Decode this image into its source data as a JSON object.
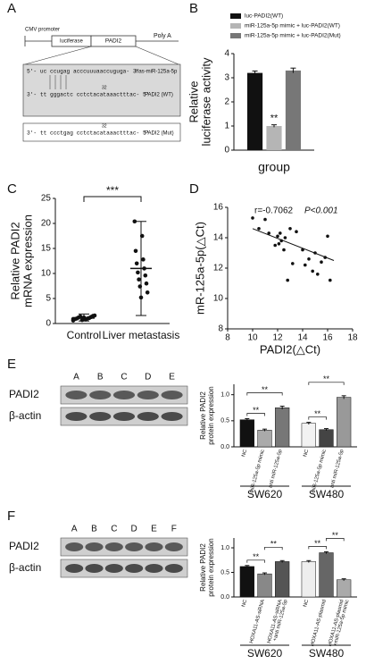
{
  "panel_labels": [
    "A",
    "B",
    "C",
    "D",
    "E",
    "F"
  ],
  "construct": {
    "promoter": "CMV promoter",
    "gene1": "luciferase",
    "gene2": "PADI2",
    "polya": "Poly A",
    "seq_mir": "5'- uc ccugag acccuuuaaccuguga- 3'",
    "mir_name": "has-miR-125a-5p",
    "seq_wt": "3'- tt gggactc cctctacataaactttac- 5'",
    "wt_name": "PADI2 (WT)",
    "seq_mut": "3'- tt ccctgag cctctacataaactttac- 5'",
    "mut_name": "PADI2 (Mut)",
    "position": "32"
  },
  "blots": [
    {
      "lanes": [
        "A",
        "B",
        "C",
        "D",
        "E"
      ],
      "rows": [
        "PADI2",
        "β-actin"
      ]
    },
    {
      "lanes": [
        "A",
        "B",
        "C",
        "D",
        "E",
        "F"
      ],
      "rows": [
        "PADI2",
        "β-actin"
      ]
    }
  ],
  "chart_data": [
    {
      "type": "bar",
      "ylabel": [
        "Relative",
        "luciferase activity"
      ],
      "categories": [
        "group"
      ],
      "series": [
        {
          "name": "luc-PADI2(WT)",
          "color": "#111111",
          "values": [
            3.2
          ],
          "errors": [
            0.08
          ]
        },
        {
          "name": "miR-125a-5p mimic + luc-PADI2(WT)",
          "color": "#b5b5b5",
          "values": [
            1.0
          ],
          "errors": [
            0.05
          ],
          "annotation": "**"
        },
        {
          "name": "miR-125a-5p mimic + luc-PADI2(Mut)",
          "color": "#777777",
          "values": [
            3.3
          ],
          "errors": [
            0.1
          ]
        }
      ],
      "ylim": [
        0,
        4
      ],
      "yticks": [
        0,
        1,
        2,
        3,
        4
      ]
    },
    {
      "type": "dot",
      "ylabel": [
        "Relative PADI2",
        "mRNA expression"
      ],
      "categories": [
        "Control",
        "Liver metastasis"
      ],
      "points": [
        [
          0.6,
          0.8,
          0.9,
          1.0,
          1.0,
          1.1,
          1.2,
          1.3,
          1.4,
          1.5,
          0.7,
          1.6,
          1.2,
          0.9
        ],
        [
          20.4,
          17.5,
          14.5,
          12.8,
          12,
          11,
          10.2,
          9.6,
          8.8,
          8,
          7.4,
          6.2,
          5.2
        ]
      ],
      "mean": [
        1.1,
        11
      ],
      "whisker_low": [
        0.5,
        1.6
      ],
      "whisker_high": [
        1.9,
        20.4
      ],
      "annotation": "***",
      "ylim": [
        0,
        25
      ],
      "yticks": [
        0,
        5,
        10,
        15,
        20,
        25
      ]
    },
    {
      "type": "scatter",
      "xlabel": "PADI2(△Ct)",
      "ylabel": "mR-125a-5p(△Ct)",
      "annotation": "r=-0.7062",
      "annotation2": "P<0.001",
      "x": [
        10,
        10.5,
        11,
        11.3,
        11.8,
        12,
        12.2,
        12.3,
        12.5,
        12.6,
        12.8,
        13,
        13.2,
        13.5,
        14,
        14.2,
        14.5,
        14.8,
        15,
        15.2,
        15.5,
        15.8,
        16,
        16.2,
        12.1
      ],
      "y": [
        15.3,
        14.6,
        15.2,
        14.3,
        13.5,
        14.1,
        14.3,
        13.8,
        13.2,
        14,
        11.2,
        14.6,
        12.3,
        14.4,
        13.2,
        12.2,
        12.6,
        11.8,
        13,
        11.6,
        12.4,
        12.7,
        14.1,
        11.2,
        13.6
      ],
      "fit": {
        "x": [
          10,
          16.5
        ],
        "y": [
          14.6,
          12.5
        ]
      },
      "xlim": [
        8,
        18
      ],
      "xticks": [
        8,
        10,
        12,
        14,
        16,
        18
      ],
      "ylim": [
        8,
        16
      ],
      "yticks": [
        8,
        10,
        12,
        14,
        16
      ]
    },
    {
      "type": "bar",
      "ylabel": [
        "Relative PADI2",
        "protein expression"
      ],
      "categories": [
        [
          "NC"
        ],
        [
          "miR-125a-5p mimic"
        ],
        [
          "anti miR-125a-5p"
        ],
        [
          "NC"
        ],
        [
          "miR-125a-5p mimic"
        ],
        [
          "anti miR-125a-5p"
        ]
      ],
      "values": [
        0.52,
        0.32,
        0.75,
        0.45,
        0.33,
        0.95
      ],
      "errors": [
        0.02,
        0.02,
        0.03,
        0.02,
        0.02,
        0.03
      ],
      "colors": [
        "#111111",
        "#aaaaaa",
        "#777777",
        "#f2f2f2",
        "#444444",
        "#999999"
      ],
      "groups": [
        "SW620",
        "SW480"
      ],
      "sig": [
        {
          "from": 0,
          "to": 1,
          "label": "**"
        },
        {
          "from": 0,
          "to": 2,
          "label": "**"
        },
        {
          "from": 3,
          "to": 4,
          "label": "**"
        },
        {
          "from": 3,
          "to": 5,
          "label": "**"
        }
      ],
      "ylim": [
        0,
        1.2
      ],
      "yticks": [
        {
          "value": 0,
          "label": "0.0"
        },
        {
          "value": 0.5,
          "label": "0.5"
        },
        {
          "value": 1,
          "label": "1.0"
        }
      ]
    },
    {
      "type": "bar",
      "ylabel": [
        "Relative PADI2",
        "protein expression"
      ],
      "categories": [
        [
          "NC"
        ],
        [
          "HOXA11-AS-siRNA"
        ],
        [
          "HOXA11-AS-siRNA",
          "+anti miR-125a-5p"
        ],
        [
          "NC"
        ],
        [
          "HOXA11-AS-plasmid"
        ],
        [
          "HOXA11-AS-plasmid",
          "+miR-125a-5p mimic"
        ]
      ],
      "values": [
        0.62,
        0.47,
        0.72,
        0.72,
        0.9,
        0.35
      ],
      "errors": [
        0.02,
        0.02,
        0.02,
        0.02,
        0.02,
        0.02
      ],
      "colors": [
        "#111111",
        "#888888",
        "#555555",
        "#eeeeee",
        "#666666",
        "#aaaaaa"
      ],
      "groups": [
        "SW620",
        "SW480"
      ],
      "sig": [
        {
          "from": 0,
          "to": 1,
          "label": "**"
        },
        {
          "from": 1,
          "to": 2,
          "label": "**"
        },
        {
          "from": 3,
          "to": 4,
          "label": "**"
        },
        {
          "from": 4,
          "to": 5,
          "label": "**"
        }
      ],
      "ylim": [
        0,
        1.2
      ],
      "yticks": [
        {
          "value": 0,
          "label": "0.0"
        },
        {
          "value": 0.5,
          "label": "0.5"
        },
        {
          "value": 1,
          "label": "1.0"
        }
      ]
    }
  ]
}
